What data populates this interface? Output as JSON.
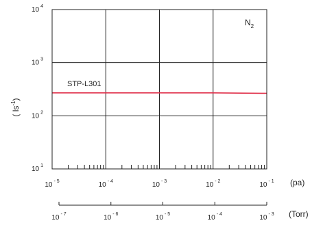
{
  "chart_data": {
    "type": "line",
    "gas_label_main": "N",
    "gas_label_sub": "2",
    "ylabel_pre": "( ls",
    "ylabel_sup": "-1",
    "ylabel_post": ")",
    "x_unit": "(pa)",
    "torr_unit": "(Torr)",
    "x_scale": "log",
    "y_scale": "log",
    "xlim": [
      1e-05,
      0.1
    ],
    "ylim": [
      10,
      10000
    ],
    "grid": true,
    "x_ticks": [
      {
        "base": "10",
        "exp": "- 5"
      },
      {
        "base": "10",
        "exp": "- 4"
      },
      {
        "base": "10",
        "exp": "- 3"
      },
      {
        "base": "10",
        "exp": "- 2"
      },
      {
        "base": "10",
        "exp": "- 1"
      }
    ],
    "y_ticks": [
      {
        "base": "10",
        "exp": "1"
      },
      {
        "base": "10",
        "exp": "2"
      },
      {
        "base": "10",
        "exp": "3"
      },
      {
        "base": "10",
        "exp": "4"
      }
    ],
    "torr_ticks": [
      {
        "base": "10",
        "exp": "- 7"
      },
      {
        "base": "10",
        "exp": "- 6"
      },
      {
        "base": "10",
        "exp": "- 5"
      },
      {
        "base": "10",
        "exp": "- 4"
      },
      {
        "base": "10",
        "exp": "- 3"
      }
    ],
    "series": [
      {
        "name": "STP-L301",
        "color": "#e0304a",
        "x": [
          1e-05,
          0.0001,
          0.001,
          0.01,
          0.1
        ],
        "y": [
          270,
          270,
          270,
          270,
          265
        ]
      }
    ]
  }
}
